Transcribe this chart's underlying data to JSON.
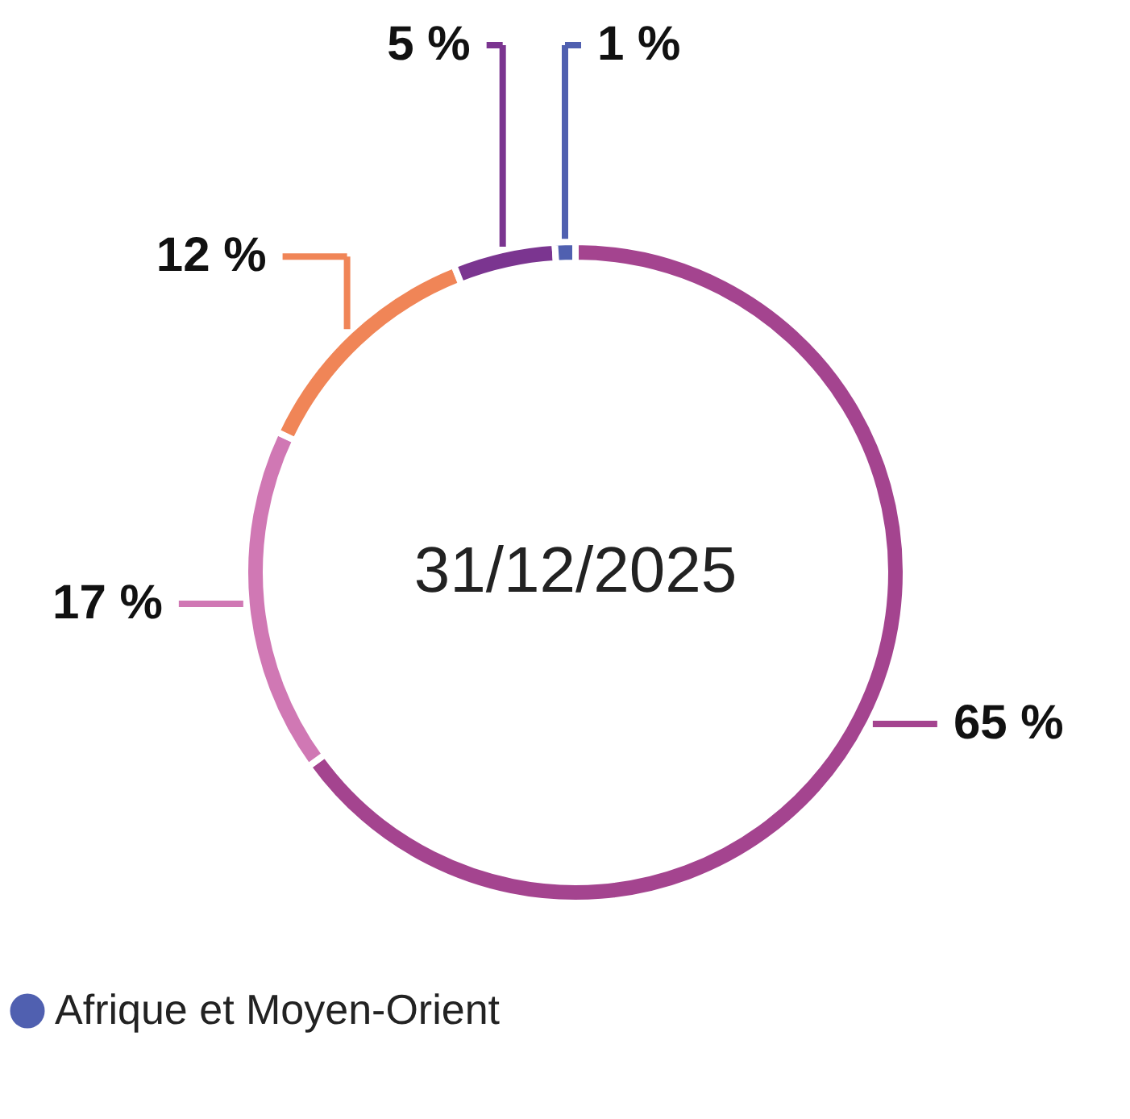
{
  "chart_data": {
    "type": "donut",
    "categories": [
      null,
      null,
      null,
      null,
      "Afrique et Moyen-Orient"
    ],
    "values": [
      65,
      17,
      12,
      5,
      1
    ],
    "colors": [
      "#a4448f",
      "#d078b4",
      "#f08557",
      "#7b3590",
      "#5060b0"
    ],
    "value_labels": [
      "65 %",
      "17 %",
      "12 %",
      "5 %",
      "1 %"
    ],
    "annotations": [
      "31/12/2025"
    ],
    "legend": "bottom left"
  }
}
